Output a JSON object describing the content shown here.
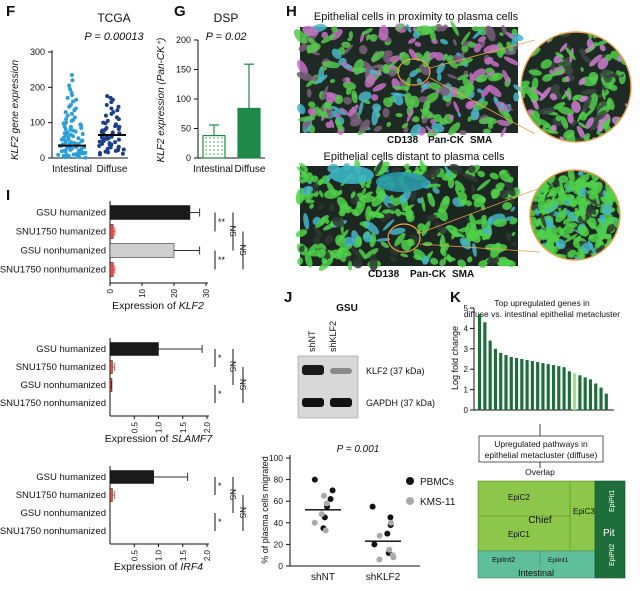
{
  "panel_labels": [
    "F",
    "G",
    "H",
    "I",
    "J",
    "K"
  ],
  "F": {
    "title": "TCGA",
    "pvalue": "P = 0.00013",
    "ylabel": "KLF2 gene expression",
    "yticks": [
      "0",
      "100",
      "200",
      "300"
    ],
    "groups": [
      "Intestinal",
      "Diffuse"
    ]
  },
  "G": {
    "title": "DSP",
    "pvalue": "P = 0.02",
    "ylabel": "KLF2 expression (Pan-CK⁺)",
    "yticks": [
      "0",
      "50",
      "100",
      "150",
      "200"
    ],
    "groups": [
      "Intestinal",
      "Diffuse"
    ]
  },
  "H": {
    "top_title": "Epithelial cells in proximity to plasma cells",
    "bottom_title": "Epithelial cells distant to plasma cells",
    "legend": [
      "CD138",
      "Pan-CK",
      "SMA"
    ],
    "legend_colors": [
      "#d37bd0",
      "#5bd35b",
      "#55c8d8"
    ]
  },
  "I": {
    "categories": [
      "GSU humanized",
      "SNU1750 humanized",
      "GSU nonhumanized",
      "SNU1750 nonhumanized"
    ],
    "sig_inner": "**",
    "sig_outer": "NS",
    "sub1": {
      "xticks": [
        "0",
        "10",
        "20",
        "30"
      ],
      "xlabel_pre": "Expression of ",
      "xlabel_gene": "KLF2",
      "sig": [
        "**",
        "**"
      ],
      "ns": [
        "NS",
        "NS"
      ]
    },
    "sub2": {
      "xticks": [
        "0.5",
        "1.0",
        "1.5",
        "2.0"
      ],
      "xlabel_pre": "Expression of ",
      "xlabel_gene": "SLAMF7",
      "sig": [
        "*",
        "*"
      ],
      "ns": [
        "NS",
        "NS"
      ]
    },
    "sub3": {
      "xticks": [
        "0.5",
        "1.0",
        "1.5",
        "2.0"
      ],
      "xlabel_pre": "Expression of ",
      "xlabel_gene": "IRF4",
      "sig": [
        "*",
        "*"
      ],
      "ns": [
        "NS",
        "NS"
      ]
    }
  },
  "J": {
    "blot_title": "GSU",
    "lane1": "shNT",
    "lane2": "shKLF2",
    "band1": "KLF2 (37 kDa)",
    "band2": "GAPDH (37 kDa)",
    "pvalue": "P = 0.001",
    "ylabel": "% of plasma cells migrated",
    "yticks": [
      "0",
      "20",
      "40",
      "60",
      "80",
      "100"
    ],
    "groups": [
      "shNT",
      "shKLF2"
    ],
    "legend": [
      "PBMCs",
      "KMS-11"
    ]
  },
  "K": {
    "title_line1": "Top upregulated genes in",
    "title_line2": "diffuse vs. intestinal epithelial metacluster",
    "ylabel": "Log fold change",
    "yticks": [
      "0",
      "1",
      "2",
      "3",
      "4",
      "5"
    ],
    "pathway_line1": "Upregulated pathways in",
    "pathway_line2": "epithelial metacluster (diffuse)",
    "overlap": "Overlap",
    "cells": {
      "epic2": "EpiC2",
      "chief": "Chief",
      "epic3": "EpiC3",
      "epic1": "EpiC1",
      "epiint2": "EpiInt2",
      "intestinal": "Intestinal",
      "epiint1": "EpiInt1",
      "pit": "Pit",
      "epipit1": "EpiPit1",
      "epipit2": "EpiPit2"
    }
  },
  "chart_data": [
    {
      "type": "scatter",
      "panel": "F",
      "title": "TCGA",
      "ylabel": "KLF2 gene expression",
      "ylim": [
        0,
        300
      ],
      "categories": [
        "Intestinal",
        "Diffuse"
      ],
      "medians": [
        35,
        65
      ],
      "series": [
        {
          "category": "Intestinal",
          "values": [
            235,
            220,
            205,
            195,
            185,
            178,
            170,
            165,
            160,
            150,
            145,
            140,
            135,
            130,
            125,
            120,
            115,
            110,
            108,
            105,
            100,
            98,
            95,
            92,
            90,
            88,
            85,
            82,
            80,
            78,
            75,
            72,
            70,
            68,
            66,
            64,
            62,
            60,
            58,
            56,
            55,
            53,
            52,
            50,
            48,
            47,
            45,
            44,
            42,
            41,
            40,
            39,
            38,
            37,
            36,
            35,
            34,
            33,
            32,
            31,
            30,
            29,
            28,
            27,
            26,
            25,
            24,
            23,
            22,
            21,
            20,
            19,
            18,
            17,
            16,
            15,
            14,
            13,
            12,
            11,
            10,
            9,
            8,
            7,
            6,
            5,
            4,
            3,
            2,
            1
          ]
        },
        {
          "category": "Diffuse",
          "values": [
            175,
            170,
            165,
            158,
            150,
            145,
            140,
            135,
            130,
            125,
            120,
            115,
            110,
            105,
            100,
            98,
            95,
            92,
            90,
            88,
            85,
            82,
            80,
            78,
            76,
            74,
            72,
            70,
            68,
            66,
            65,
            64,
            62,
            60,
            58,
            56,
            55,
            54,
            52,
            50,
            48,
            46,
            45,
            44,
            42,
            40,
            38,
            36,
            34,
            32,
            30,
            28,
            26,
            24,
            22,
            20,
            18,
            16,
            14,
            12,
            10
          ]
        }
      ]
    },
    {
      "type": "bar",
      "panel": "G",
      "title": "DSP",
      "ylabel": "KLF2 expression (Pan-CK⁺)",
      "ylim": [
        0,
        200
      ],
      "categories": [
        "Intestinal",
        "Diffuse"
      ],
      "values": [
        38,
        84
      ],
      "errors": [
        18,
        75
      ]
    },
    {
      "type": "bar",
      "panel": "I-KLF2",
      "xlabel": "Expression of KLF2",
      "xlim": [
        0,
        30
      ],
      "categories": [
        "GSU humanized",
        "SNU1750 humanized",
        "GSU nonhumanized",
        "SNU1750 nonhumanized"
      ],
      "values": [
        25,
        1,
        20,
        1
      ],
      "errors": [
        3,
        0.5,
        8,
        0.5
      ]
    },
    {
      "type": "bar",
      "panel": "I-SLAMF7",
      "xlabel": "Expression of SLAMF7",
      "xlim": [
        0,
        2
      ],
      "categories": [
        "GSU humanized",
        "SNU1750 humanized",
        "GSU nonhumanized",
        "SNU1750 nonhumanized"
      ],
      "values": [
        1.0,
        0.05,
        0.01,
        0.0
      ],
      "errors": [
        0.9,
        0.04,
        0.02,
        0
      ]
    },
    {
      "type": "bar",
      "panel": "I-IRF4",
      "xlabel": "Expression of IRF4",
      "xlim": [
        0,
        2
      ],
      "categories": [
        "GSU humanized",
        "SNU1750 humanized",
        "GSU nonhumanized",
        "SNU1750 nonhumanized"
      ],
      "values": [
        0.9,
        0.05,
        0.0,
        0.0
      ],
      "errors": [
        0.7,
        0.04,
        0,
        0
      ]
    },
    {
      "type": "scatter",
      "panel": "J",
      "ylabel": "% of plasma cells migrated",
      "ylim": [
        0,
        100
      ],
      "categories": [
        "shNT",
        "shKLF2"
      ],
      "medians": [
        52,
        23
      ],
      "series": [
        {
          "name": "PBMCs",
          "category": "shNT",
          "values": [
            80,
            70,
            62,
            55,
            45,
            35
          ]
        },
        {
          "name": "KMS-11",
          "category": "shNT",
          "values": [
            65,
            58,
            48,
            40,
            33
          ]
        },
        {
          "name": "PBMCs",
          "category": "shKLF2",
          "values": [
            55,
            45,
            38,
            30,
            20,
            12
          ]
        },
        {
          "name": "KMS-11",
          "category": "shKLF2",
          "values": [
            40,
            28,
            15,
            10,
            8,
            6
          ]
        }
      ]
    },
    {
      "type": "bar",
      "panel": "K",
      "ylabel": "Log fold change",
      "ylim": [
        0,
        5
      ],
      "values": [
        4.7,
        4.3,
        3.4,
        3.0,
        2.8,
        2.7,
        2.6,
        2.55,
        2.5,
        2.45,
        2.4,
        2.35,
        2.3,
        2.25,
        2.2,
        2.15,
        2.1,
        1.9,
        1.8,
        1.7,
        1.6,
        1.5,
        1.3,
        1.1,
        0.8
      ],
      "highlight_index": 18
    }
  ]
}
